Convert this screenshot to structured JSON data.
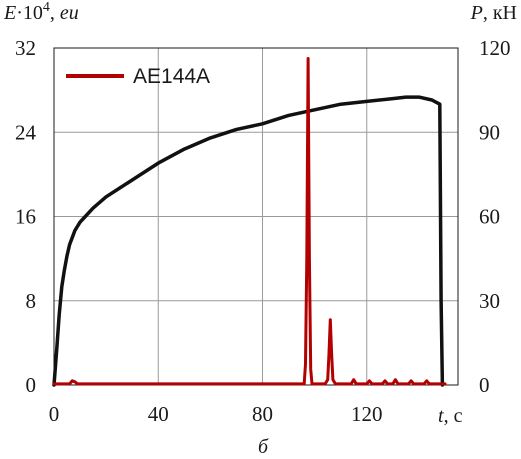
{
  "chart_data": {
    "type": "line",
    "xlabel": {
      "var": "t",
      "unit": ", с"
    },
    "ylabel_left": {
      "var": "E",
      "mid": "·10",
      "sup": "4",
      "sep": ", ",
      "unit": "eu"
    },
    "ylabel_right": {
      "var": "P",
      "unit": ", кН"
    },
    "caption": "б",
    "xlim": [
      0,
      155
    ],
    "ylim_left": [
      0,
      32
    ],
    "ylim_right": [
      0,
      120
    ],
    "x_ticks": [
      "0",
      "40",
      "80",
      "120"
    ],
    "x_tick_values": [
      0,
      40,
      80,
      120
    ],
    "y_left_ticks": [
      "0",
      "8",
      "16",
      "24",
      "32"
    ],
    "y_left_tick_values": [
      0,
      8,
      16,
      24,
      32
    ],
    "y_right_ticks": [
      "0",
      "30",
      "60",
      "90",
      "120"
    ],
    "y_right_tick_values": [
      0,
      30,
      60,
      90,
      120
    ],
    "grid": true,
    "legend_position": "top-left",
    "colors": {
      "load": "#111111",
      "ae": "#b30000",
      "grid": "#9a9a9a"
    },
    "series": [
      {
        "name": "AE144A",
        "axis": "left",
        "color": "#b30000",
        "x": [
          0,
          6,
          7,
          8,
          9,
          20,
          40,
          60,
          80,
          96,
          96.5,
          97,
          97.5,
          98,
          98.5,
          99,
          104,
          105,
          105.5,
          106,
          106.5,
          107,
          108,
          114,
          115,
          116,
          120,
          121,
          122,
          126,
          127,
          128,
          130,
          131,
          132,
          136,
          137,
          138,
          142,
          143,
          144,
          150
        ],
        "y": [
          0.1,
          0.1,
          0.4,
          0.3,
          0.1,
          0.1,
          0.1,
          0.1,
          0.1,
          0.1,
          2,
          12,
          31,
          12,
          1.5,
          0.1,
          0.1,
          0.5,
          3,
          6.2,
          3,
          0.5,
          0.1,
          0.1,
          0.5,
          0.1,
          0.1,
          0.4,
          0.1,
          0.1,
          0.4,
          0.1,
          0.1,
          0.5,
          0.1,
          0.1,
          0.4,
          0.1,
          0.1,
          0.4,
          0.1,
          0.1
        ]
      },
      {
        "name": "",
        "axis": "right",
        "color": "#111111",
        "x": [
          0,
          1,
          2,
          3,
          4,
          5,
          6,
          8,
          10,
          12,
          15,
          20,
          25,
          30,
          40,
          50,
          60,
          70,
          80,
          90,
          100,
          110,
          120,
          130,
          135,
          140,
          145,
          148,
          148.5,
          149
        ],
        "y": [
          0,
          12,
          25,
          35,
          41,
          46,
          50,
          55,
          58,
          60,
          63,
          67,
          70,
          73,
          79,
          84,
          88,
          91,
          93,
          96,
          98,
          100,
          101,
          102,
          102.5,
          102.5,
          101.5,
          100,
          30,
          0
        ]
      }
    ]
  }
}
